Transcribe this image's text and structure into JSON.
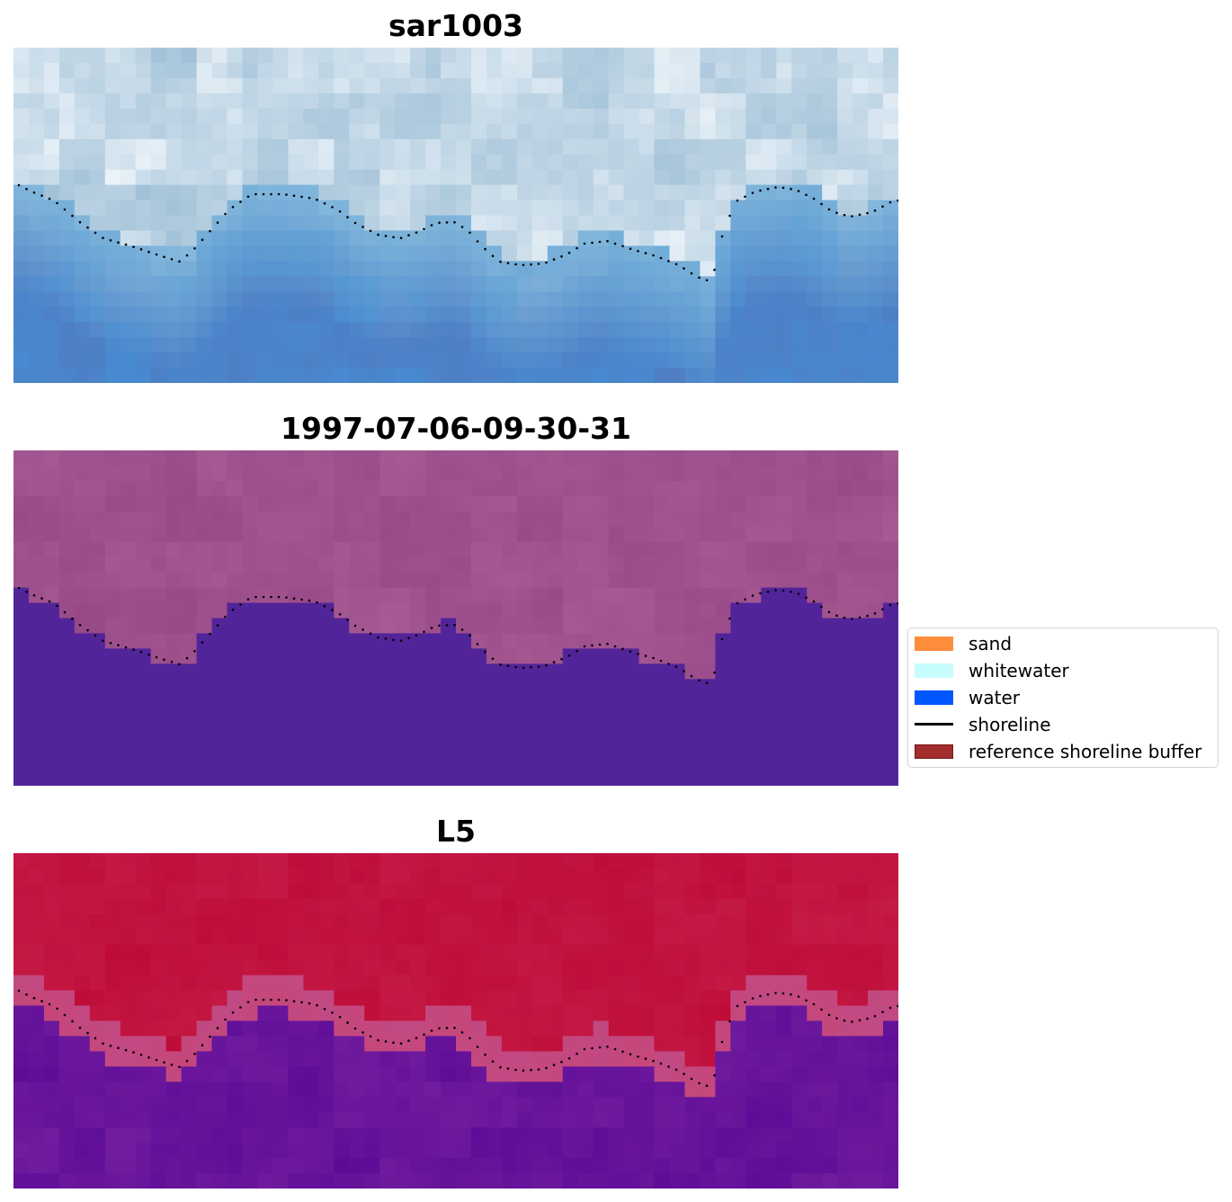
{
  "panels": [
    {
      "title": "sar1003",
      "colormap": "blues",
      "image_kind": "sar-backscatter"
    },
    {
      "title": "1997-07-06-09-30-31",
      "colormap": "classification",
      "image_kind": "classified-image"
    },
    {
      "title": "L5",
      "colormap": "probability",
      "image_kind": "landsat-probability"
    }
  ],
  "legend": {
    "placement": "right-center",
    "items": [
      {
        "label": "sand",
        "color": "#ff8c3a",
        "kind": "patch"
      },
      {
        "label": "whitewater",
        "color": "#c8fdfd",
        "kind": "patch"
      },
      {
        "label": "water",
        "color": "#0057ff",
        "kind": "patch"
      },
      {
        "label": "shoreline",
        "color": "#000000",
        "kind": "line"
      },
      {
        "label": "reference shoreline buffer",
        "color": "#a12d2d",
        "kind": "patch",
        "edge": "#7a1414"
      }
    ]
  },
  "colors": {
    "shoreline_dots": "#000000",
    "classified_water": "#52249a",
    "classified_land": "#a8598f"
  }
}
